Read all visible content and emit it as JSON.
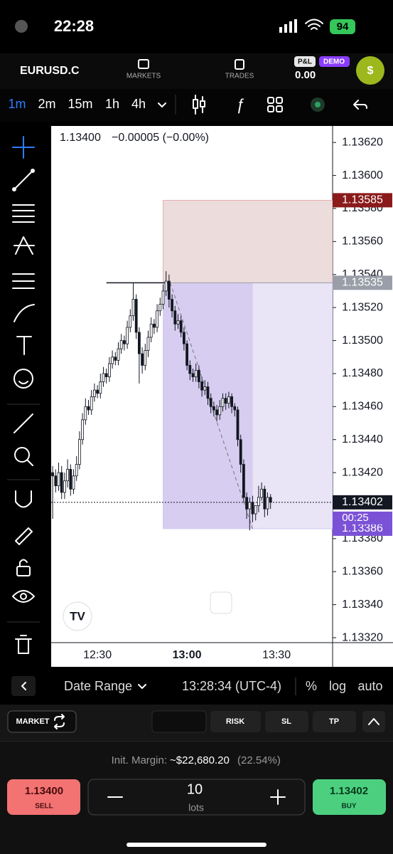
{
  "status_bar": {
    "time": "22:28",
    "battery": "94"
  },
  "header": {
    "symbol": "EURUSD.C",
    "nav": [
      "MARKETS",
      "TRADES"
    ],
    "pnl_label": "P&L",
    "mode": "DEMO",
    "pnl": "0.00",
    "avatar": "$"
  },
  "timeframes": [
    "1m",
    "2m",
    "15m",
    "1h",
    "4h"
  ],
  "chart_data": {
    "type": "candlestick",
    "price_header": "1.13400",
    "change_header": "−0.00005 (−0.00%)",
    "x": [
      "12:15",
      "12:16",
      "12:17",
      "12:18",
      "12:19",
      "12:20",
      "12:21",
      "12:22",
      "12:23",
      "12:24",
      "12:25",
      "12:26",
      "12:27",
      "12:28",
      "12:29",
      "12:30",
      "12:31",
      "12:32",
      "12:33",
      "12:34",
      "12:35",
      "12:36",
      "12:37",
      "12:38",
      "12:39",
      "12:40",
      "12:41",
      "12:42",
      "12:43",
      "12:44",
      "12:45",
      "12:46",
      "12:47",
      "12:48",
      "12:49",
      "12:50",
      "12:51",
      "12:52",
      "12:53",
      "12:54",
      "12:55",
      "12:56",
      "12:57",
      "12:58",
      "12:59",
      "13:00",
      "13:01",
      "13:02",
      "13:03",
      "13:04",
      "13:05",
      "13:06",
      "13:07",
      "13:08",
      "13:09",
      "13:10",
      "13:11",
      "13:12",
      "13:13",
      "13:14",
      "13:15",
      "13:16",
      "13:17",
      "13:18",
      "13:19",
      "13:20",
      "13:21",
      "13:22",
      "13:23",
      "13:24",
      "13:25",
      "13:26",
      "13:27",
      "13:28"
    ],
    "open": [
      1.1342,
      1.13418,
      1.13412,
      1.1342,
      1.13408,
      1.13415,
      1.13422,
      1.1341,
      1.13418,
      1.13425,
      1.1344,
      1.13452,
      1.1346,
      1.13458,
      1.13466,
      1.1347,
      1.13468,
      1.13475,
      1.1348,
      1.13478,
      1.13486,
      1.1349,
      1.13488,
      1.13495,
      1.135,
      1.13498,
      1.13508,
      1.13515,
      1.13525,
      1.13505,
      1.13492,
      1.13485,
      1.13494,
      1.13502,
      1.1351,
      1.13508,
      1.13518,
      1.13522,
      1.1353,
      1.13536,
      1.13525,
      1.13518,
      1.1351,
      1.13512,
      1.13505,
      1.13498,
      1.13485,
      1.1348,
      1.13478,
      1.13482,
      1.13475,
      1.1347,
      1.13472,
      1.13465,
      1.1346,
      1.13458,
      1.13455,
      1.1346,
      1.13465,
      1.13462,
      1.13466,
      1.1346,
      1.13458,
      1.1344,
      1.13425,
      1.13405,
      1.13398,
      1.13402,
      1.13395,
      1.134,
      1.13405,
      1.1341,
      1.13398,
      1.13405
    ],
    "high": [
      1.13424,
      1.13422,
      1.13426,
      1.13424,
      1.1342,
      1.13428,
      1.13425,
      1.13422,
      1.1343,
      1.13445,
      1.13456,
      1.13465,
      1.13464,
      1.1347,
      1.13474,
      1.13473,
      1.1348,
      1.13484,
      1.13483,
      1.1349,
      1.13494,
      1.13493,
      1.13499,
      1.13504,
      1.13503,
      1.13512,
      1.13519,
      1.13535,
      1.13528,
      1.13508,
      1.13496,
      1.13498,
      1.13506,
      1.13514,
      1.13513,
      1.13522,
      1.13526,
      1.13534,
      1.13542,
      1.1354,
      1.13528,
      1.13521,
      1.13516,
      1.13515,
      1.13508,
      1.135,
      1.13488,
      1.13483,
      1.13486,
      1.13485,
      1.13478,
      1.13476,
      1.13475,
      1.13468,
      1.13463,
      1.13461,
      1.13464,
      1.13468,
      1.13468,
      1.13469,
      1.13468,
      1.13462,
      1.1346,
      1.13443,
      1.13428,
      1.13408,
      1.13405,
      1.13406,
      1.134,
      1.13412,
      1.13414,
      1.13412,
      1.13408,
      1.13407
    ],
    "low": [
      1.13392,
      1.13408,
      1.13409,
      1.13404,
      1.13404,
      1.13411,
      1.13406,
      1.13407,
      1.13415,
      1.13422,
      1.13437,
      1.13449,
      1.13455,
      1.13455,
      1.13463,
      1.13465,
      1.13465,
      1.13472,
      1.13474,
      1.13475,
      1.13483,
      1.13485,
      1.13485,
      1.13492,
      1.13494,
      1.13495,
      1.13505,
      1.13512,
      1.13501,
      1.13474,
      1.1348,
      1.13482,
      1.1349,
      1.13499,
      1.13504,
      1.13505,
      1.13515,
      1.13519,
      1.13527,
      1.1352,
      1.13514,
      1.13506,
      1.13507,
      1.13502,
      1.13494,
      1.13482,
      1.13476,
      1.13475,
      1.13475,
      1.13471,
      1.13466,
      1.13467,
      1.13461,
      1.13456,
      1.13454,
      1.13451,
      1.13452,
      1.13457,
      1.13458,
      1.13459,
      1.13456,
      1.13454,
      1.13436,
      1.1342,
      1.13402,
      1.13392,
      1.13385,
      1.1339,
      1.13391,
      1.13396,
      1.13403,
      1.13393,
      1.13394,
      1.13398
    ],
    "close": [
      1.13418,
      1.13412,
      1.1342,
      1.13408,
      1.13415,
      1.13422,
      1.1341,
      1.13418,
      1.13425,
      1.1344,
      1.13452,
      1.1346,
      1.13458,
      1.13466,
      1.1347,
      1.13468,
      1.13475,
      1.1348,
      1.13478,
      1.13486,
      1.1349,
      1.13488,
      1.13495,
      1.135,
      1.13498,
      1.13508,
      1.13515,
      1.13525,
      1.13505,
      1.13492,
      1.13485,
      1.13494,
      1.13502,
      1.1351,
      1.13508,
      1.13518,
      1.13522,
      1.1353,
      1.13536,
      1.13525,
      1.13518,
      1.1351,
      1.13512,
      1.13505,
      1.13498,
      1.13485,
      1.1348,
      1.13478,
      1.13482,
      1.13475,
      1.1347,
      1.13472,
      1.13465,
      1.1346,
      1.13458,
      1.13455,
      1.1346,
      1.13465,
      1.13462,
      1.13466,
      1.1346,
      1.13458,
      1.1344,
      1.13425,
      1.13405,
      1.13398,
      1.13402,
      1.13395,
      1.134,
      1.13405,
      1.1341,
      1.13398,
      1.13405,
      1.13402
    ],
    "up_color": "#ffffff",
    "down_color": "#131722",
    "ylim": [
      1.13317,
      1.1363
    ],
    "yticks": [
      {
        "value": 1.1362,
        "label": "1.13620"
      },
      {
        "value": 1.136,
        "label": "1.13600"
      },
      {
        "value": 1.1358,
        "label": "1.13580"
      },
      {
        "value": 1.1356,
        "label": "1.13560"
      },
      {
        "value": 1.1354,
        "label": "1.13540"
      },
      {
        "value": 1.1352,
        "label": "1.13520"
      },
      {
        "value": 1.135,
        "label": "1.13500"
      },
      {
        "value": 1.1348,
        "label": "1.13480"
      },
      {
        "value": 1.1346,
        "label": "1.13460"
      },
      {
        "value": 1.1344,
        "label": "1.13440"
      },
      {
        "value": 1.1342,
        "label": "1.13420"
      },
      {
        "value": 1.134,
        "label": "1.13400"
      },
      {
        "value": 1.1338,
        "label": "1.13380"
      },
      {
        "value": 1.1336,
        "label": "1.13360"
      },
      {
        "value": 1.1334,
        "label": "1.13340"
      },
      {
        "value": 1.1332,
        "label": "1.13320"
      }
    ],
    "xticks": [
      "12:30",
      "13:00",
      "13:30"
    ],
    "position_tool": {
      "stop": 1.13585,
      "entry": 1.13535,
      "target": 1.13386,
      "start": "12:52",
      "end": "13:22",
      "stop_color": "#8b1a1a",
      "entry_color": "#9a9ea8",
      "target_color": "#7b52d6"
    },
    "level_line": {
      "value": 1.13535,
      "start": "12:33",
      "end": "12:54"
    },
    "last_price": 1.13402,
    "countdown": "00:25"
  },
  "bottom_bar": {
    "date_range": "Date Range",
    "clock": "13:28:34 (UTC-4)",
    "options": [
      "%",
      "log",
      "auto"
    ]
  },
  "order_bar": {
    "order_type": "MARKET",
    "buttons": [
      "RISK",
      "SL",
      "TP"
    ]
  },
  "margin": {
    "label": "Init. Margin:",
    "value": "~$22,680.20",
    "percent": "(22.54%)"
  },
  "trade": {
    "sell_price": "1.13400",
    "sell_label": "SELL",
    "quantity": "10",
    "unit": "lots",
    "buy_price": "1.13402",
    "buy_label": "BUY"
  }
}
